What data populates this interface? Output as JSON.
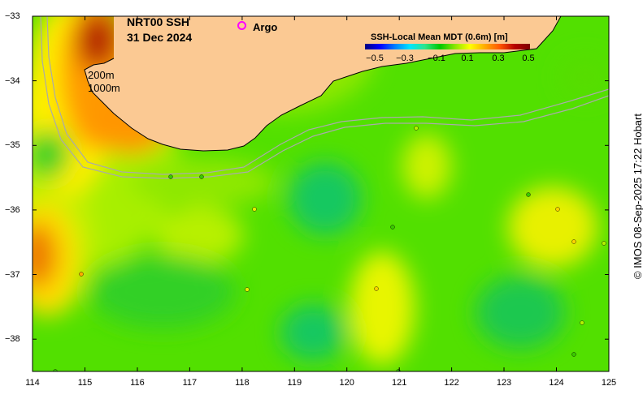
{
  "map": {
    "product_title": "NRT00 SSH",
    "date": "31 Dec 2024",
    "argo_marker_symbol": "o",
    "argo_label": "Argo",
    "isobath_labels": [
      "200m",
      "1000m"
    ],
    "colorbar": {
      "title": "SSH-Local Mean MDT (0.6m) [m]",
      "ticks": [
        "−0.5",
        "−0.3",
        "−0.1",
        "0.1",
        "0.3",
        "0.5"
      ]
    },
    "x_axis_ticks": [
      "114",
      "115",
      "116",
      "117",
      "118",
      "119",
      "120",
      "121",
      "122",
      "123",
      "124",
      "125"
    ],
    "y_axis_ticks": [
      "−33",
      "−34",
      "−35",
      "−36",
      "−37",
      "−38"
    ],
    "credit": "© IMOS 08-Sep-2025 17:22 Hobart",
    "colors": {
      "land": "#fbc993",
      "high": "#b42200",
      "orange": "#ff9600",
      "yellow": "#ffff00",
      "yellow_green": "#b4f000",
      "green": "#00dc00",
      "low_green": "#00b46e",
      "argo_marker": "#ff00ff",
      "isobath": "#aaaaaa"
    }
  }
}
